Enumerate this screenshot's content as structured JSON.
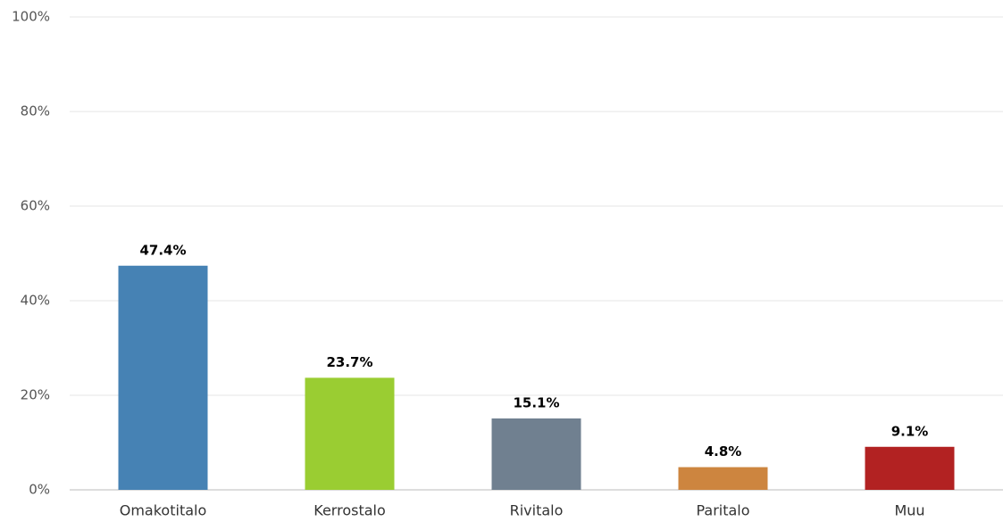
{
  "chart_data": {
    "type": "bar",
    "categories": [
      "Omakotitalo",
      "Kerrostalo",
      "Rivitalo",
      "Paritalo",
      "Muu"
    ],
    "values": [
      47.4,
      23.7,
      15.1,
      4.8,
      9.1
    ],
    "value_labels": [
      "47.4%",
      "23.7%",
      "15.1%",
      "4.8%",
      "9.1%"
    ],
    "colors": [
      "#4682b4",
      "#9acd32",
      "#708090",
      "#cd853f",
      "#b22222"
    ],
    "ylim": [
      0,
      100
    ],
    "yticks": [
      {
        "value": 0,
        "label": "0%"
      },
      {
        "value": 20,
        "label": "20%"
      },
      {
        "value": 40,
        "label": "40%"
      },
      {
        "value": 60,
        "label": "60%"
      },
      {
        "value": 80,
        "label": "80%"
      },
      {
        "value": 100,
        "label": "100%"
      }
    ],
    "grid": true
  }
}
